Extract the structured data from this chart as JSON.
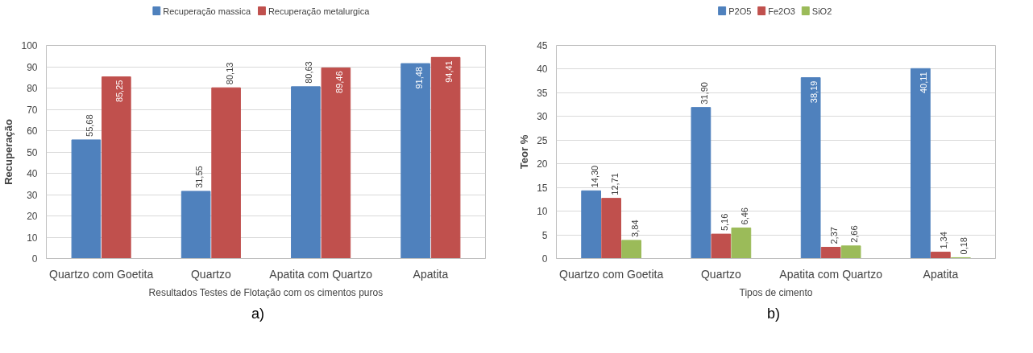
{
  "chart_data": [
    {
      "type": "bar",
      "xlabel": "Resultados Testes de Flotação com os cimentos puros",
      "ylabel": "Recuperação",
      "categories": [
        "Quartzo com Goetita",
        "Quartzo",
        "Apatita com Quartzo",
        "Apatita"
      ],
      "series": [
        {
          "name": "Recuperação massica",
          "color": "#4f81bd",
          "values": [
            55.68,
            31.55,
            80.63,
            91.48
          ],
          "value_labels": [
            "55,68",
            "31,55",
            "80,63",
            "91,48"
          ]
        },
        {
          "name": "Recuperação metalurgica",
          "color": "#c0504d",
          "values": [
            85.25,
            80.13,
            89.46,
            94.41
          ],
          "value_labels": [
            "85,25",
            "80,13",
            "89,46",
            "94,41"
          ]
        }
      ],
      "ylim": [
        0,
        100
      ],
      "yticks": [
        0,
        10,
        20,
        30,
        40,
        50,
        60,
        70,
        80,
        90,
        100
      ],
      "grid": "y",
      "legend": "top",
      "annotations": [
        "a)"
      ]
    },
    {
      "type": "bar",
      "xlabel": "Tipos de cimento",
      "ylabel": "Teor %",
      "categories": [
        "Quartzo com Goetita",
        "Quartzo",
        "Apatita com Quartzo",
        "Apatita"
      ],
      "series": [
        {
          "name": "P2O5",
          "color": "#4f81bd",
          "values": [
            14.3,
            31.9,
            38.19,
            40.11
          ],
          "value_labels": [
            "14,30",
            "31,90",
            "38,19",
            "40,11"
          ]
        },
        {
          "name": "Fe2O3",
          "color": "#c0504d",
          "values": [
            12.71,
            5.16,
            2.37,
            1.34
          ],
          "value_labels": [
            "12,71",
            "5,16",
            "2,37",
            "1,34"
          ]
        },
        {
          "name": "SiO2",
          "color": "#9bbb59",
          "values": [
            3.84,
            6.46,
            2.66,
            0.18
          ],
          "value_labels": [
            "3,84",
            "6,46",
            "2,66",
            "0,18"
          ]
        }
      ],
      "ylim": [
        0,
        45
      ],
      "yticks": [
        0,
        5,
        10,
        15,
        20,
        25,
        30,
        35,
        40,
        45
      ],
      "grid": "y",
      "legend": "top",
      "annotations": [
        "b)"
      ]
    }
  ]
}
